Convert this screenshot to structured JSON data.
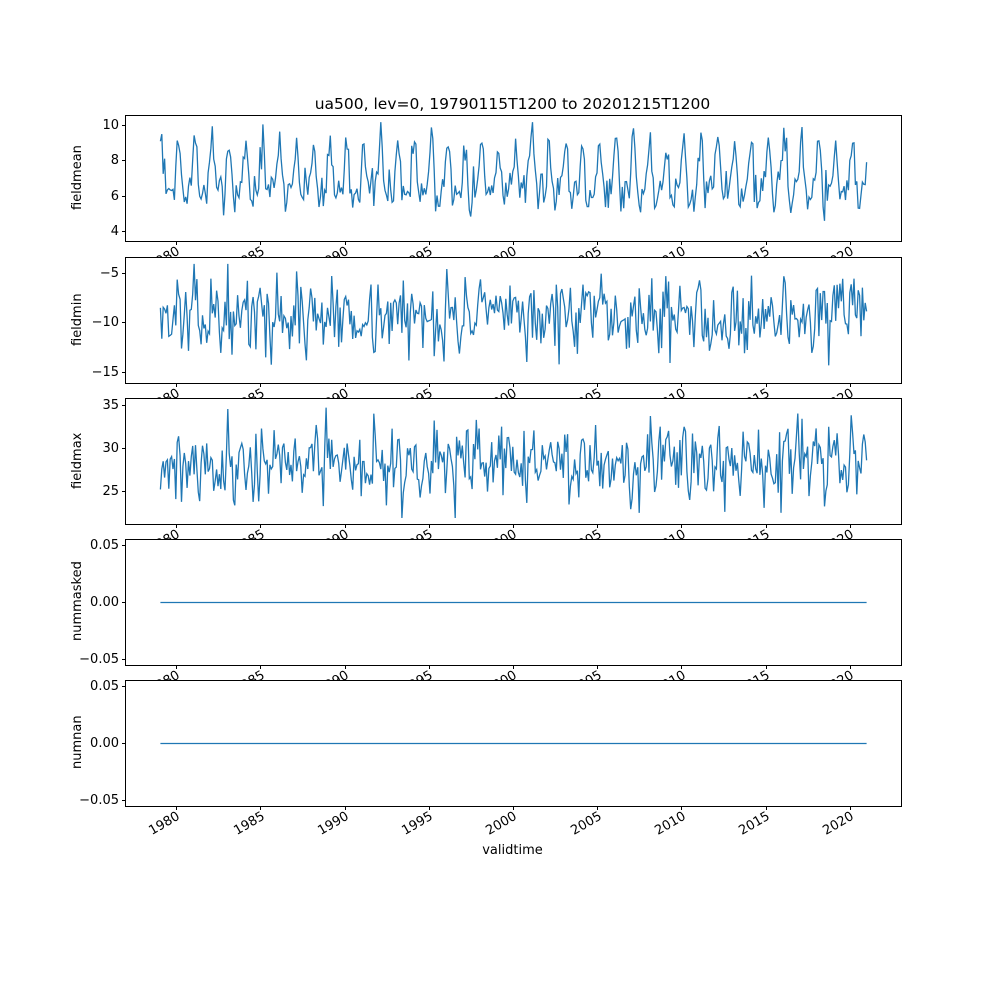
{
  "figure": {
    "title": "ua500, lev=0, 19790115T1200 to 20201215T1200",
    "xlabel": "validtime",
    "line_color": "#1f77b4",
    "background": "#ffffff"
  },
  "x_axis": {
    "xlim": [
      1977.0,
      2023.0
    ],
    "ticks": [
      1980,
      1985,
      1990,
      1995,
      2000,
      2005,
      2010,
      2015,
      2020
    ],
    "tick_labels": [
      "1980",
      "1985",
      "1990",
      "1995",
      "2000",
      "2005",
      "2010",
      "2015",
      "2020"
    ],
    "tick_rotation_deg": 30,
    "data_start": "19790115T1200",
    "data_end": "20201215T1200"
  },
  "chart_data": [
    {
      "type": "line",
      "title": "ua500, lev=0, 19790115T1200 to 20201215T1200",
      "ylabel": "fieldmean",
      "xlabel": "validtime",
      "ylim": [
        3.45,
        10.55
      ],
      "yticks": [
        {
          "v": 10,
          "label": "10"
        },
        {
          "v": 8,
          "label": "8"
        },
        {
          "v": 6,
          "label": "6"
        },
        {
          "v": 4,
          "label": "4"
        }
      ],
      "series": {
        "kind": "seasonal-monthly",
        "start_year": 1979,
        "end_year": 2020,
        "points_per_year": 12,
        "n_points": 504,
        "mean": 7.1,
        "annual_amp": 1.35,
        "annual_phase": 1.3,
        "semiannual_amp": 0.75,
        "semiannual_phase": 0.6,
        "noise_sd": 0.55,
        "clip_min": 3.8,
        "clip_max": 10.2,
        "seed": 7
      }
    },
    {
      "type": "line",
      "ylabel": "fieldmin",
      "ylim": [
        -16.1,
        -3.4
      ],
      "yticks": [
        {
          "v": -5,
          "label": "−5"
        },
        {
          "v": -10,
          "label": "−10"
        },
        {
          "v": -15,
          "label": "−15"
        }
      ],
      "series": {
        "kind": "seasonal-monthly",
        "start_year": 1979,
        "end_year": 2020,
        "points_per_year": 12,
        "n_points": 504,
        "mean": -9.3,
        "annual_amp": 0.9,
        "annual_phase": 0.8,
        "semiannual_amp": 0.5,
        "semiannual_phase": 1.9,
        "noise_sd": 1.7,
        "clip_min": -15.4,
        "clip_max": -4.0,
        "seed": 13
      }
    },
    {
      "type": "line",
      "ylabel": "fieldmax",
      "ylim": [
        21.2,
        35.8
      ],
      "yticks": [
        {
          "v": 35,
          "label": "35"
        },
        {
          "v": 30,
          "label": "30"
        },
        {
          "v": 25,
          "label": "25"
        }
      ],
      "series": {
        "kind": "seasonal-monthly",
        "start_year": 1979,
        "end_year": 2020,
        "points_per_year": 12,
        "n_points": 504,
        "mean": 28.3,
        "annual_amp": 0.8,
        "annual_phase": 2.1,
        "semiannual_amp": 0.5,
        "semiannual_phase": 0.2,
        "noise_sd": 2.2,
        "clip_min": 21.9,
        "clip_max": 35.1,
        "seed": 21
      }
    },
    {
      "type": "line",
      "ylabel": "nummasked",
      "ylim": [
        -0.055,
        0.055
      ],
      "yticks": [
        {
          "v": 0.05,
          "label": "0.05"
        },
        {
          "v": 0.0,
          "label": "0.00"
        },
        {
          "v": -0.05,
          "label": "−0.05"
        }
      ],
      "series": {
        "kind": "constant",
        "start_year": 1979,
        "end_year": 2020,
        "points_per_year": 12,
        "n_points": 504,
        "value": 0.0
      }
    },
    {
      "type": "line",
      "ylabel": "numnan",
      "ylim": [
        -0.055,
        0.055
      ],
      "yticks": [
        {
          "v": 0.05,
          "label": "0.05"
        },
        {
          "v": 0.0,
          "label": "0.00"
        },
        {
          "v": -0.05,
          "label": "−0.05"
        }
      ],
      "series": {
        "kind": "constant",
        "start_year": 1979,
        "end_year": 2020,
        "points_per_year": 12,
        "n_points": 504,
        "value": 0.0
      }
    }
  ]
}
